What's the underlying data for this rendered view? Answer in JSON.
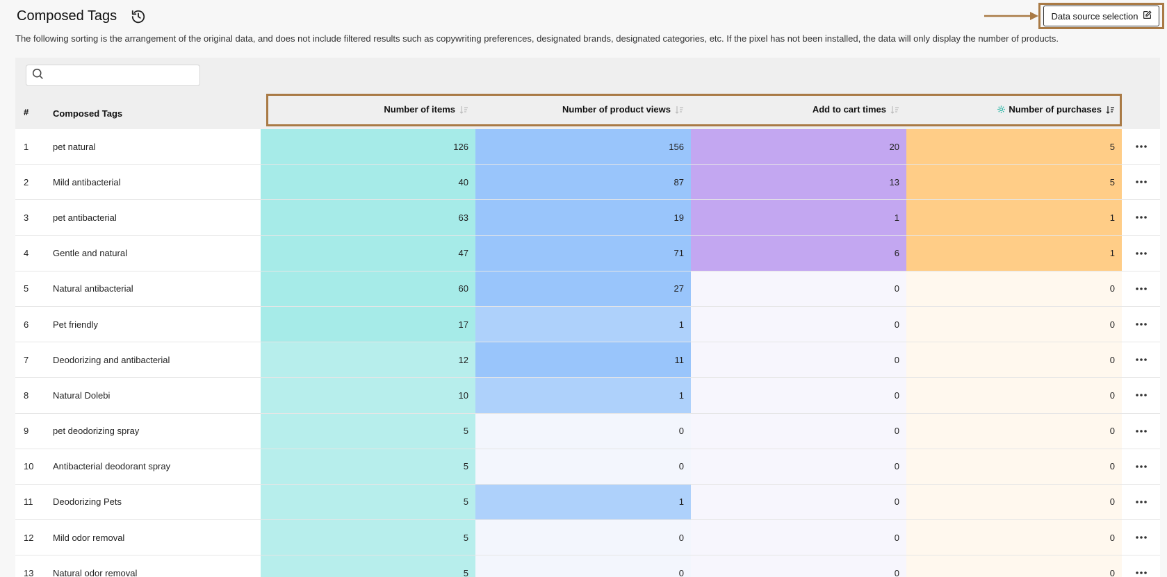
{
  "header": {
    "title": "Composed Tags",
    "description": "The following sorting is the arrangement of the original data, and does not include filtered results such as copywriting preferences, designated brands, designated categories, etc. If the pixel has not been installed, the data will only display the number of products.",
    "data_source_label": "Data source selection"
  },
  "search": {
    "placeholder": "",
    "value": ""
  },
  "table": {
    "columns": {
      "index": "#",
      "tag": "Composed Tags",
      "items": "Number of items",
      "views": "Number of product views",
      "cart": "Add to cart times",
      "purchases": "Number of purchases"
    },
    "rows": [
      {
        "index": "1",
        "tag": "pet natural",
        "items": "126",
        "views": "156",
        "cart": "20",
        "purchases": "5"
      },
      {
        "index": "2",
        "tag": "Mild antibacterial",
        "items": "40",
        "views": "87",
        "cart": "13",
        "purchases": "5"
      },
      {
        "index": "3",
        "tag": "pet antibacterial",
        "items": "63",
        "views": "19",
        "cart": "1",
        "purchases": "1"
      },
      {
        "index": "4",
        "tag": "Gentle and natural",
        "items": "47",
        "views": "71",
        "cart": "6",
        "purchases": "1"
      },
      {
        "index": "5",
        "tag": "Natural antibacterial",
        "items": "60",
        "views": "27",
        "cart": "0",
        "purchases": "0"
      },
      {
        "index": "6",
        "tag": "Pet friendly",
        "items": "17",
        "views": "1",
        "cart": "0",
        "purchases": "0"
      },
      {
        "index": "7",
        "tag": "Deodorizing and antibacterial",
        "items": "12",
        "views": "11",
        "cart": "0",
        "purchases": "0"
      },
      {
        "index": "8",
        "tag": "Natural Dolebi",
        "items": "10",
        "views": "1",
        "cart": "0",
        "purchases": "0"
      },
      {
        "index": "9",
        "tag": "pet deodorizing spray",
        "items": "5",
        "views": "0",
        "cart": "0",
        "purchases": "0"
      },
      {
        "index": "10",
        "tag": "Antibacterial deodorant spray",
        "items": "5",
        "views": "0",
        "cart": "0",
        "purchases": "0"
      },
      {
        "index": "11",
        "tag": "Deodorizing Pets",
        "items": "5",
        "views": "1",
        "cart": "0",
        "purchases": "0"
      },
      {
        "index": "12",
        "tag": "Mild odor removal",
        "items": "5",
        "views": "0",
        "cart": "0",
        "purchases": "0"
      },
      {
        "index": "13",
        "tag": "Natural odor removal",
        "items": "5",
        "views": "0",
        "cart": "0",
        "purchases": "0"
      }
    ]
  },
  "colors": {
    "items_strong": "#a6ebe8",
    "items_light": "#b7eeec",
    "views_strong": "#99c5fb",
    "views_light": "#aed1fb",
    "views_zero": "#f3f6fd",
    "cart_strong": "#c3a7f1",
    "cart_zero": "#f7f6fd",
    "purchases_strong": "#ffcd87",
    "purchases_zero": "#fff8ee",
    "annotation": "#a97a45",
    "purchases_icon": "#2bb5a5"
  },
  "icons": {
    "history": "history-icon",
    "edit": "edit-icon",
    "search": "search-icon",
    "sort": "sort-icon",
    "settings": "settings-icon",
    "more": "more-icon"
  }
}
